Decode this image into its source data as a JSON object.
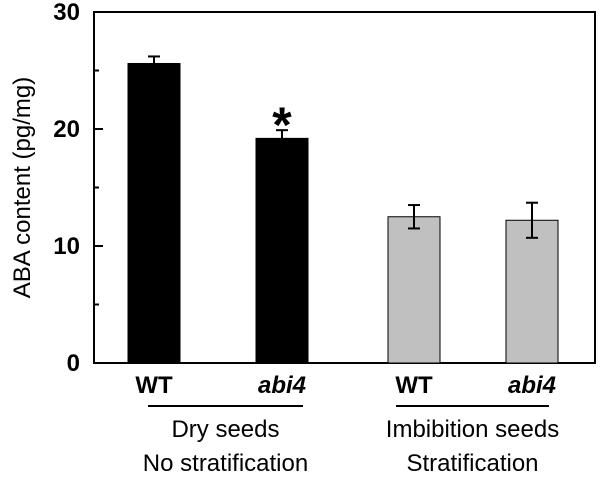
{
  "chart_data": {
    "type": "bar",
    "ylabel": "ABA content (pg/mg)",
    "ylim": [
      0,
      30
    ],
    "yticks": [
      0,
      10,
      20,
      30
    ],
    "grid": false,
    "categories": [
      "WT",
      "abi4",
      "WT",
      "abi4"
    ],
    "italic_categories": [
      false,
      true,
      false,
      true
    ],
    "values": [
      25.6,
      19.2,
      12.5,
      12.2
    ],
    "errors": [
      0.6,
      0.7,
      1.0,
      1.5
    ],
    "bar_colors": [
      "#000000",
      "#000000",
      "#c0c0c0",
      "#c0c0c0"
    ],
    "groups": [
      {
        "lines": [
          "Dry seeds",
          "No stratification"
        ],
        "category_indices": [
          0,
          1
        ]
      },
      {
        "lines": [
          "Imbibition seeds",
          "Stratification"
        ],
        "category_indices": [
          2,
          3
        ]
      }
    ],
    "annotations": [
      {
        "category_index": 1,
        "text": "*"
      }
    ]
  }
}
